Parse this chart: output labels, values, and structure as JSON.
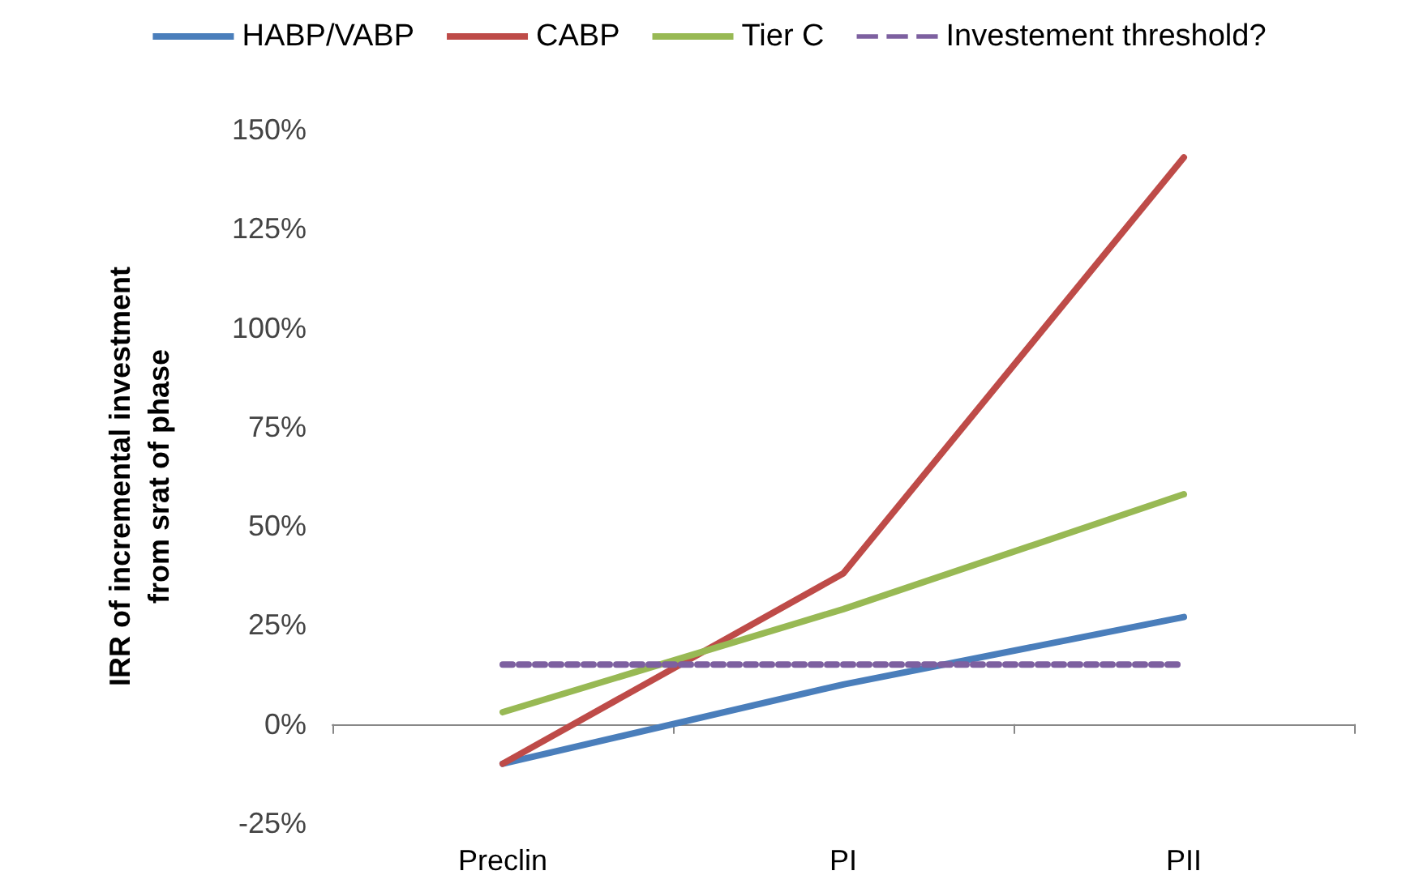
{
  "chart_data": {
    "type": "line",
    "ylabel": "IRR of incremental investment\nfrom srat of phase",
    "categories": [
      "Preclin",
      "PI",
      "PII"
    ],
    "series": [
      {
        "name": "HABP/VABP",
        "color": "#4a7ebb",
        "values": [
          -10,
          10,
          27
        ]
      },
      {
        "name": "CABP",
        "color": "#be4b48",
        "values": [
          -10,
          38,
          143
        ]
      },
      {
        "name": "Tier C",
        "color": "#98b954",
        "values": [
          3,
          29,
          58
        ]
      },
      {
        "name": "Investement threshold?",
        "color": "#7d60a0",
        "values": [
          15,
          15,
          15
        ],
        "line_style": "dashed"
      }
    ],
    "ylim": [
      -25,
      150
    ],
    "yticks": [
      {
        "value": -25,
        "label": "-25%"
      },
      {
        "value": 0,
        "label": "0%"
      },
      {
        "value": 25,
        "label": "25%"
      },
      {
        "value": 50,
        "label": "50%"
      },
      {
        "value": 75,
        "label": "75%"
      },
      {
        "value": 100,
        "label": "100%"
      },
      {
        "value": 125,
        "label": "125%"
      },
      {
        "value": 150,
        "label": "150%"
      }
    ],
    "legend": "top",
    "marker": "none",
    "line_style": "solid"
  }
}
